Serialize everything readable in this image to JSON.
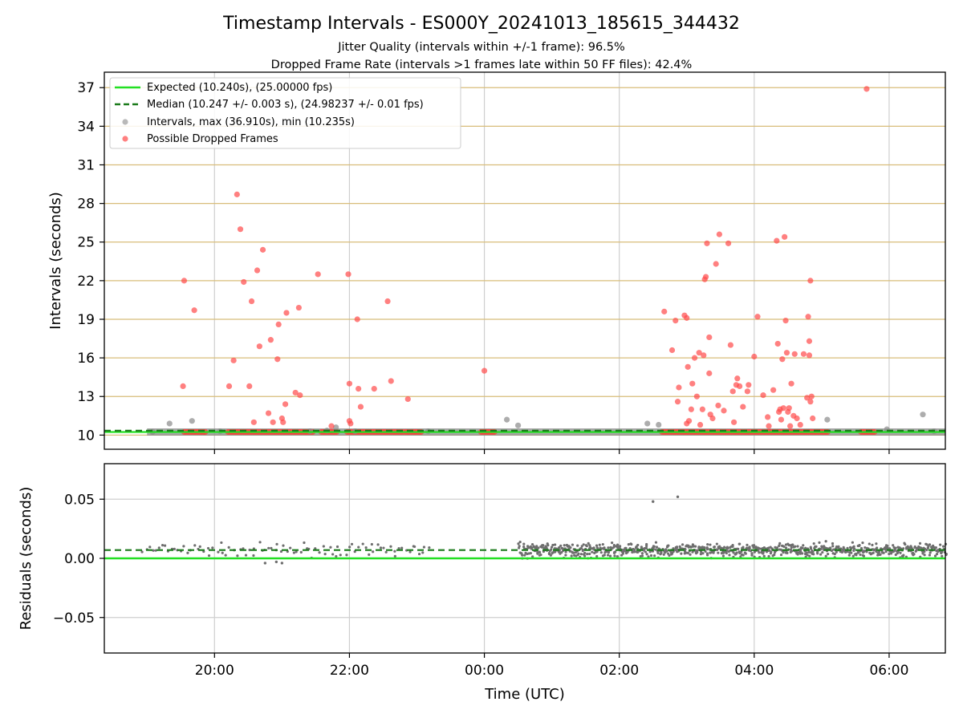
{
  "chart_data": [
    {
      "type": "scatter",
      "title": "Timestamp Intervals - ES000Y_20241013_185615_344432",
      "subtitle_1": "Jitter Quality (intervals within +/-1 frame): 96.5%",
      "subtitle_2": "Dropped Frame Rate (intervals >1 frames late within 50 FF files): 42.4%",
      "xlabel": "",
      "ylabel": "Intervals (seconds)",
      "xlim": [
        "2024-10-13T18:22",
        "2024-10-14T06:50"
      ],
      "ylim": [
        8.9,
        38.2
      ],
      "yticks": [
        10,
        13,
        16,
        19,
        22,
        25,
        28,
        31,
        34,
        37
      ],
      "xticks": [
        {
          "t": "2024-10-13T20:00",
          "label": "20:00"
        },
        {
          "t": "2024-10-13T22:00",
          "label": "22:00"
        },
        {
          "t": "2024-10-14T00:00",
          "label": "00:00"
        },
        {
          "t": "2024-10-14T02:00",
          "label": "02:00"
        },
        {
          "t": "2024-10-14T04:00",
          "label": "04:00"
        },
        {
          "t": "2024-10-14T06:00",
          "label": "06:00"
        }
      ],
      "grid": "on (horizontal gridlines colored goldenrod)",
      "legend_placement": "top-left",
      "legend": [
        {
          "label": "Expected (10.240s), (25.00000 fps)",
          "style": "solid-line",
          "color": "#22e022"
        },
        {
          "label": "Median (10.247 +/- 0.003 s), (24.98237 +/- 0.01 fps)",
          "style": "dashed-line",
          "color": "#1a7a1a"
        },
        {
          "label": "Intervals, max (36.910s), min (10.235s)",
          "style": "marker",
          "color": "#8a8a8a"
        },
        {
          "label": "Possible Dropped Frames",
          "style": "marker",
          "color": "#ff4a4a"
        }
      ],
      "expected_value": 10.24,
      "median_value": 10.247,
      "normal_intervals_band": {
        "value": 10.24,
        "segments": [
          [
            "2024-10-13T19:00",
            "2024-10-14T06:50"
          ]
        ]
      },
      "series": [
        {
          "name": "Intervals, max (36.910s), min (10.235s)",
          "color": "#8a8a8a",
          "points": [
            [
              "2024-10-13T19:05",
              10.25
            ],
            [
              "2024-10-13T19:20",
              10.9
            ],
            [
              "2024-10-13T19:40",
              11.1
            ],
            [
              "2024-10-13T20:05",
              10.3
            ],
            [
              "2024-10-13T21:25",
              10.3
            ],
            [
              "2024-10-13T21:40",
              10.35
            ],
            [
              "2024-10-13T21:48",
              10.6
            ],
            [
              "2024-10-13T22:05",
              10.3
            ],
            [
              "2024-10-13T23:10",
              10.3
            ],
            [
              "2024-10-14T00:20",
              11.2
            ],
            [
              "2024-10-14T00:30",
              10.75
            ],
            [
              "2024-10-14T02:25",
              10.9
            ],
            [
              "2024-10-14T02:35",
              10.8
            ],
            [
              "2024-10-14T05:05",
              11.2
            ],
            [
              "2024-10-14T05:58",
              10.45
            ],
            [
              "2024-10-14T06:30",
              11.6
            ],
            [
              "2024-10-14T06:40",
              10.3
            ]
          ]
        },
        {
          "name": "Possible Dropped Frames",
          "color": "#ff4a4a",
          "points": [
            [
              "2024-10-13T19:32",
              13.8
            ],
            [
              "2024-10-13T19:33",
              22.0
            ],
            [
              "2024-10-13T19:42",
              19.7
            ],
            [
              "2024-10-13T20:13",
              13.8
            ],
            [
              "2024-10-13T20:17",
              15.8
            ],
            [
              "2024-10-13T20:20",
              28.7
            ],
            [
              "2024-10-13T20:23",
              26.0
            ],
            [
              "2024-10-13T20:26",
              21.9
            ],
            [
              "2024-10-13T20:31",
              13.8
            ],
            [
              "2024-10-13T20:33",
              20.4
            ],
            [
              "2024-10-13T20:35",
              11.0
            ],
            [
              "2024-10-13T20:38",
              22.8
            ],
            [
              "2024-10-13T20:40",
              16.9
            ],
            [
              "2024-10-13T20:43",
              24.4
            ],
            [
              "2024-10-13T20:48",
              11.7
            ],
            [
              "2024-10-13T20:50",
              17.4
            ],
            [
              "2024-10-13T20:52",
              11.0
            ],
            [
              "2024-10-13T20:56",
              15.9
            ],
            [
              "2024-10-13T20:57",
              18.6
            ],
            [
              "2024-10-13T21:00",
              11.3
            ],
            [
              "2024-10-13T21:01",
              11.0
            ],
            [
              "2024-10-13T21:03",
              12.4
            ],
            [
              "2024-10-13T21:04",
              19.5
            ],
            [
              "2024-10-13T21:12",
              13.3
            ],
            [
              "2024-10-13T21:15",
              19.9
            ],
            [
              "2024-10-13T21:16",
              13.1
            ],
            [
              "2024-10-13T21:32",
              22.5
            ],
            [
              "2024-10-13T21:44",
              10.7
            ],
            [
              "2024-10-13T21:59",
              22.5
            ],
            [
              "2024-10-13T22:00",
              14.0
            ],
            [
              "2024-10-13T22:00",
              11.1
            ],
            [
              "2024-10-13T22:01",
              10.9
            ],
            [
              "2024-10-13T22:07",
              19.0
            ],
            [
              "2024-10-13T22:10",
              12.2
            ],
            [
              "2024-10-13T22:08",
              13.6
            ],
            [
              "2024-10-13T22:22",
              13.6
            ],
            [
              "2024-10-13T22:34",
              20.4
            ],
            [
              "2024-10-13T22:37",
              14.2
            ],
            [
              "2024-10-13T22:52",
              12.8
            ],
            [
              "2024-10-14T00:00",
              15.0
            ],
            [
              "2024-10-14T02:40",
              19.6
            ],
            [
              "2024-10-14T02:47",
              16.6
            ],
            [
              "2024-10-14T02:50",
              18.9
            ],
            [
              "2024-10-14T02:52",
              12.6
            ],
            [
              "2024-10-14T02:53",
              13.7
            ],
            [
              "2024-10-14T02:58",
              19.3
            ],
            [
              "2024-10-14T03:00",
              19.1
            ],
            [
              "2024-10-14T03:00",
              10.9
            ],
            [
              "2024-10-14T03:01",
              15.3
            ],
            [
              "2024-10-14T03:02",
              11.1
            ],
            [
              "2024-10-14T03:04",
              12.0
            ],
            [
              "2024-10-14T03:05",
              14.0
            ],
            [
              "2024-10-14T03:07",
              16.0
            ],
            [
              "2024-10-14T03:09",
              13.0
            ],
            [
              "2024-10-14T03:11",
              16.4
            ],
            [
              "2024-10-14T03:12",
              10.8
            ],
            [
              "2024-10-14T03:14",
              12.0
            ],
            [
              "2024-10-14T03:15",
              16.2
            ],
            [
              "2024-10-14T03:16",
              22.1
            ],
            [
              "2024-10-14T03:17",
              22.3
            ],
            [
              "2024-10-14T03:18",
              24.9
            ],
            [
              "2024-10-14T03:20",
              17.6
            ],
            [
              "2024-10-14T03:20",
              14.8
            ],
            [
              "2024-10-14T03:21",
              11.6
            ],
            [
              "2024-10-14T03:23",
              11.3
            ],
            [
              "2024-10-14T03:26",
              23.3
            ],
            [
              "2024-10-14T03:28",
              12.3
            ],
            [
              "2024-10-14T03:29",
              25.6
            ],
            [
              "2024-10-14T03:33",
              11.9
            ],
            [
              "2024-10-14T03:37",
              24.9
            ],
            [
              "2024-10-14T03:39",
              17.0
            ],
            [
              "2024-10-14T03:41",
              13.4
            ],
            [
              "2024-10-14T03:42",
              11.0
            ],
            [
              "2024-10-14T03:45",
              14.4
            ],
            [
              "2024-10-14T03:44",
              13.9
            ],
            [
              "2024-10-14T03:47",
              13.8
            ],
            [
              "2024-10-14T03:50",
              12.2
            ],
            [
              "2024-10-14T03:54",
              13.4
            ],
            [
              "2024-10-14T03:55",
              13.9
            ],
            [
              "2024-10-14T04:00",
              16.1
            ],
            [
              "2024-10-14T04:03",
              19.2
            ],
            [
              "2024-10-14T04:08",
              13.1
            ],
            [
              "2024-10-14T04:12",
              11.4
            ],
            [
              "2024-10-14T04:13",
              10.7
            ],
            [
              "2024-10-14T04:17",
              13.5
            ],
            [
              "2024-10-14T04:20",
              25.1
            ],
            [
              "2024-10-14T04:21",
              17.1
            ],
            [
              "2024-10-14T04:22",
              11.8
            ],
            [
              "2024-10-14T04:23",
              12.0
            ],
            [
              "2024-10-14T04:24",
              11.2
            ],
            [
              "2024-10-14T04:25",
              15.9
            ],
            [
              "2024-10-14T04:26",
              12.1
            ],
            [
              "2024-10-14T04:27",
              25.4
            ],
            [
              "2024-10-14T04:28",
              18.9
            ],
            [
              "2024-10-14T04:29",
              16.4
            ],
            [
              "2024-10-14T04:30",
              11.8
            ],
            [
              "2024-10-14T04:31",
              12.1
            ],
            [
              "2024-10-14T04:32",
              10.7
            ],
            [
              "2024-10-14T04:33",
              14.0
            ],
            [
              "2024-10-14T04:35",
              11.5
            ],
            [
              "2024-10-14T04:36",
              16.3
            ],
            [
              "2024-10-14T04:38",
              11.3
            ],
            [
              "2024-10-14T04:41",
              10.8
            ],
            [
              "2024-10-14T04:44",
              16.3
            ],
            [
              "2024-10-14T04:47",
              12.9
            ],
            [
              "2024-10-14T04:48",
              19.2
            ],
            [
              "2024-10-14T04:49",
              17.3
            ],
            [
              "2024-10-14T04:50",
              22.0
            ],
            [
              "2024-10-14T04:49",
              16.2
            ],
            [
              "2024-10-14T04:50",
              12.6
            ],
            [
              "2024-10-14T04:51",
              13.0
            ],
            [
              "2024-10-14T04:52",
              11.3
            ],
            [
              "2024-10-14T05:40",
              36.9
            ]
          ]
        }
      ],
      "dropped_baseline_clusters": [
        [
          "2024-10-13T19:33",
          "2024-10-13T19:52"
        ],
        [
          "2024-10-13T20:12",
          "2024-10-13T21:28"
        ],
        [
          "2024-10-13T21:35",
          "2024-10-13T21:50"
        ],
        [
          "2024-10-13T21:58",
          "2024-10-13T22:48"
        ],
        [
          "2024-10-13T22:50",
          "2024-10-13T23:05"
        ],
        [
          "2024-10-13T23:57",
          "2024-10-14T00:10"
        ],
        [
          "2024-10-14T02:38",
          "2024-10-14T05:06"
        ],
        [
          "2024-10-14T05:35",
          "2024-10-14T05:48"
        ]
      ]
    },
    {
      "type": "scatter",
      "title": "",
      "xlabel": "Time (UTC)",
      "ylabel": "Residuals (seconds)",
      "xlim": [
        "2024-10-13T18:22",
        "2024-10-14T06:50"
      ],
      "ylim": [
        -0.08,
        0.08
      ],
      "yticks": [
        {
          "value": 0.05,
          "label": "0.05"
        },
        {
          "value": 0.0,
          "label": "0.00"
        },
        {
          "value": -0.05,
          "label": "−0.05"
        }
      ],
      "grid": "on",
      "expected_residual": 0.0,
      "median_residual": 0.007,
      "residual_band": {
        "sparse_segment": [
          "2024-10-13T18:55",
          "2024-10-13T23:10"
        ],
        "dense_segment": [
          "2024-10-14T00:30",
          "2024-10-14T06:50"
        ],
        "center": 0.007,
        "spread": 0.006
      },
      "residual_outliers": [
        [
          "2024-10-14T02:30",
          0.048
        ],
        [
          "2024-10-14T02:52",
          0.052
        ],
        [
          "2024-10-13T20:45",
          -0.004
        ],
        [
          "2024-10-13T20:55",
          -0.003
        ],
        [
          "2024-10-13T21:00",
          -0.004
        ]
      ]
    }
  ]
}
